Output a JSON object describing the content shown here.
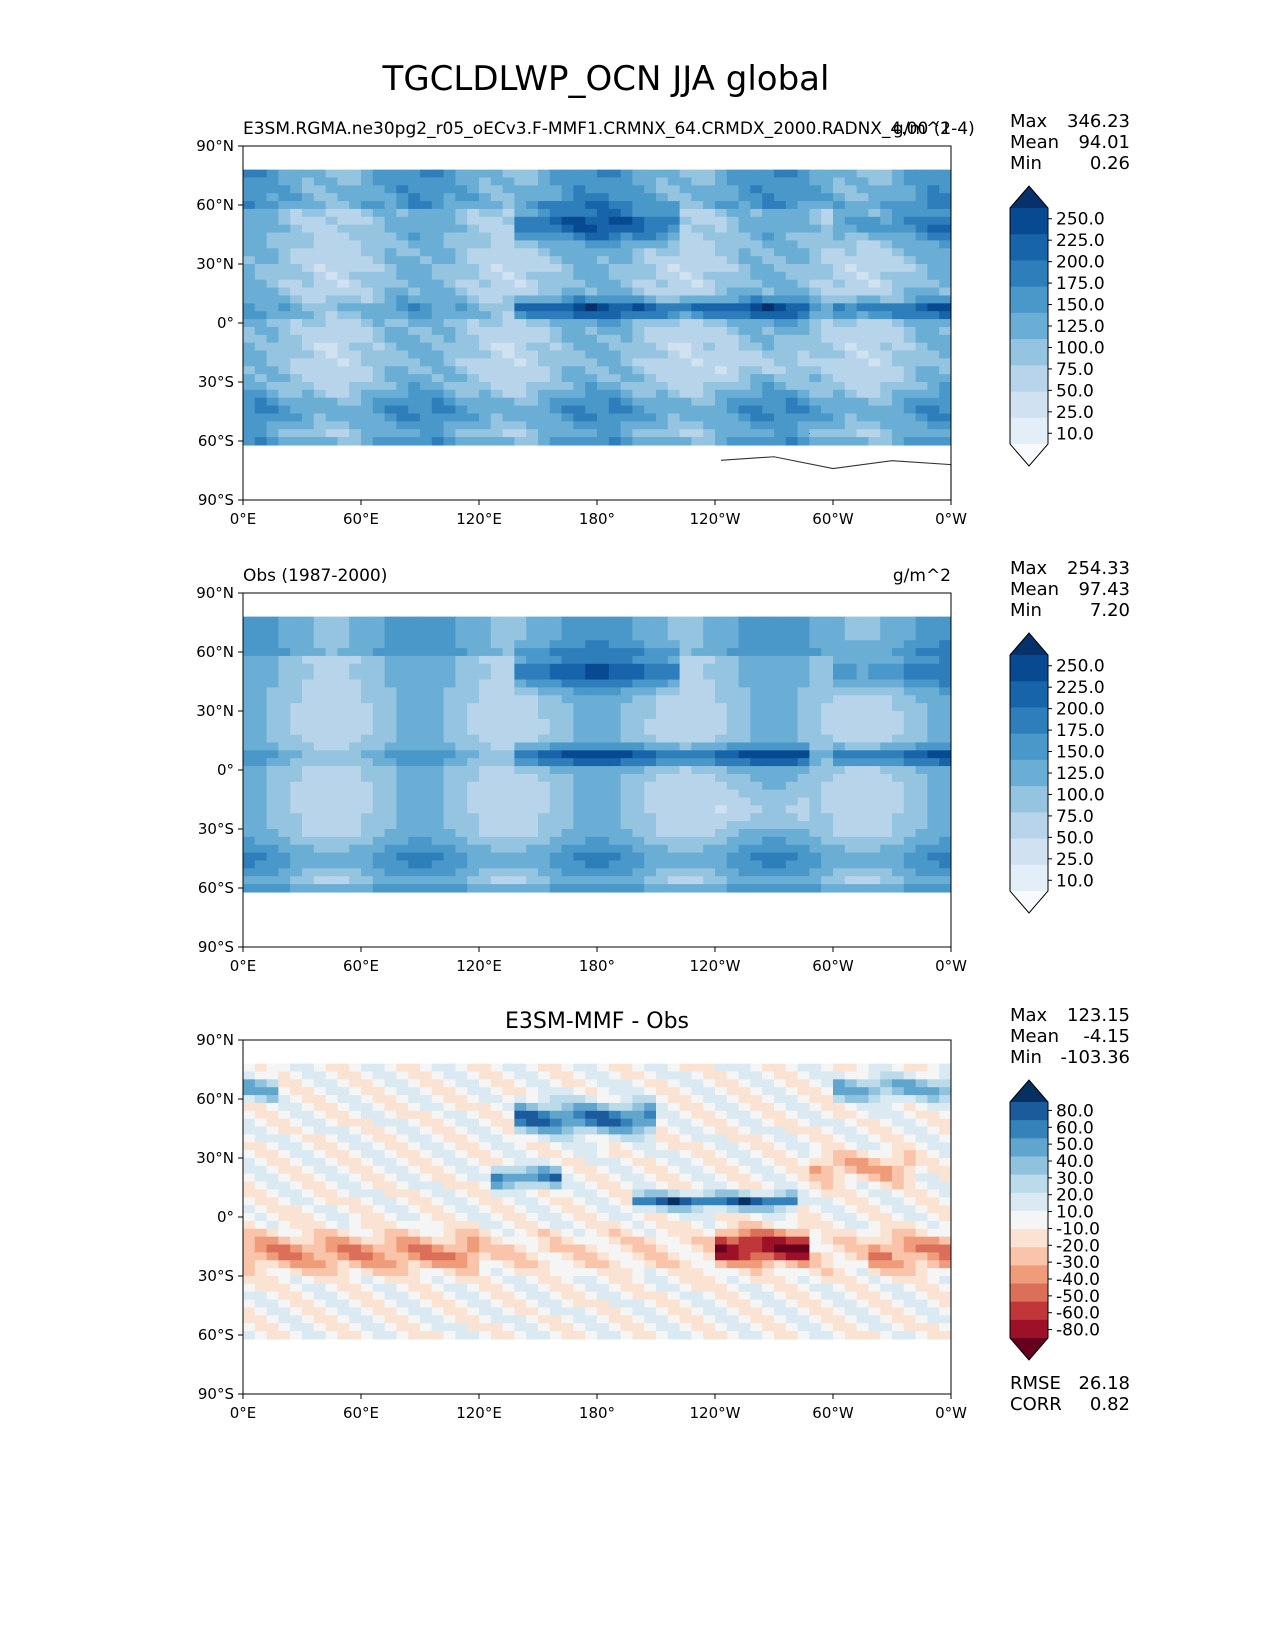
{
  "title": "TGCLDLWP_OCN JJA global",
  "units": "g/m^2",
  "lon_ticks": [
    "0°E",
    "60°E",
    "120°E",
    "180°",
    "120°W",
    "60°W",
    "0°W"
  ],
  "lat_ticks": [
    "90°N",
    "60°N",
    "30°N",
    "0°",
    "30°S",
    "60°S",
    "90°S"
  ],
  "stat_labels": {
    "max": "Max",
    "mean": "Mean",
    "min": "Min",
    "rmse": "RMSE",
    "corr": "CORR"
  },
  "colors": {
    "blues": [
      "#f7fbff",
      "#e3eef9",
      "#d0e1f2",
      "#b7d4ea",
      "#94c4df",
      "#6aaed6",
      "#4a98c9",
      "#2e7ebc",
      "#1764ab",
      "#084a92",
      "#08306b"
    ],
    "diff": [
      "#67001f",
      "#9c1127",
      "#c13639",
      "#dc6f59",
      "#f09c7b",
      "#f9c4a9",
      "#fbe3d4",
      "#f5f5f5",
      "#dbeaf2",
      "#bbdaea",
      "#90c2dd",
      "#5fa5cd",
      "#3581b9",
      "#1b5a9b",
      "#053061"
    ],
    "land": "#ffffff",
    "coast": "#333333"
  },
  "chart_data": [
    {
      "type": "heatmap",
      "subplot_title": "",
      "left_title": "E3SM.RGMA.ne30pg2_r05_oECv3.F-MMF1.CRMNX_64.CRMDX_2000.RADNX_4.00 (1-4)",
      "right_title": "g/m^2",
      "stats": {
        "max": "346.23",
        "mean": "94.01",
        "min": "0.26"
      },
      "colorbar": {
        "levels": [
          "250.0",
          "225.0",
          "200.0",
          "175.0",
          "150.0",
          "125.0",
          "100.0",
          "75.0",
          "50.0",
          "25.0",
          "10.0"
        ],
        "palette": "blues"
      },
      "xlabel": "",
      "ylabel": "",
      "xlim": [
        0,
        360
      ],
      "ylim": [
        -90,
        90
      ],
      "grid": false
    },
    {
      "type": "heatmap",
      "subplot_title": "",
      "left_title": "Obs (1987-2000)",
      "right_title": "g/m^2",
      "stats": {
        "max": "254.33",
        "mean": "97.43",
        "min": "7.20"
      },
      "colorbar": {
        "levels": [
          "250.0",
          "225.0",
          "200.0",
          "175.0",
          "150.0",
          "125.0",
          "100.0",
          "75.0",
          "50.0",
          "25.0",
          "10.0"
        ],
        "palette": "blues"
      },
      "xlabel": "",
      "ylabel": "",
      "xlim": [
        0,
        360
      ],
      "ylim": [
        -90,
        90
      ],
      "grid": false
    },
    {
      "type": "heatmap",
      "subplot_title": "E3SM-MMF - Obs",
      "left_title": "",
      "right_title": "",
      "stats": {
        "max": "123.15",
        "mean": "-4.15",
        "min": "-103.36",
        "rmse": "26.18",
        "corr": "0.82"
      },
      "colorbar": {
        "levels": [
          "80.0",
          "60.0",
          "50.0",
          "40.0",
          "30.0",
          "20.0",
          "10.0",
          "-10.0",
          "-20.0",
          "-30.0",
          "-40.0",
          "-50.0",
          "-60.0",
          "-80.0"
        ],
        "palette": "diff"
      },
      "xlabel": "",
      "ylabel": "",
      "xlim": [
        0,
        360
      ],
      "ylim": [
        -90,
        90
      ],
      "grid": false
    }
  ]
}
